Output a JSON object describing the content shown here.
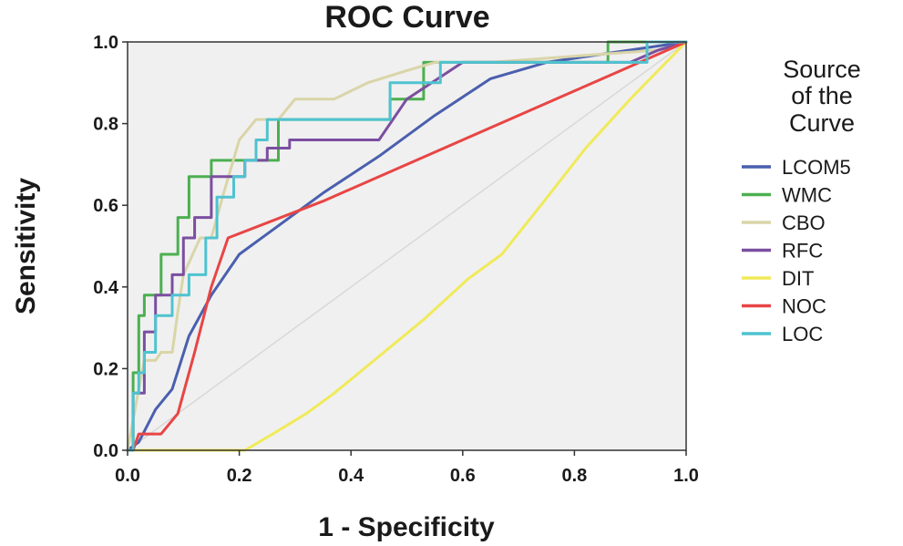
{
  "chart_data": {
    "type": "line",
    "title": "ROC Curve",
    "xlabel": "1 - Specificity",
    "ylabel": "Sensitivity",
    "xlim": [
      0,
      1
    ],
    "ylim": [
      0,
      1
    ],
    "xticks": [
      "0.0",
      "0.2",
      "0.4",
      "0.6",
      "0.8",
      "1.0"
    ],
    "yticks": [
      "0.0",
      "0.2",
      "0.4",
      "0.6",
      "0.8",
      "1.0"
    ],
    "plot_background": "#f0f0f0",
    "grid": false,
    "legend": {
      "title": [
        "Source",
        "of the",
        "Curve"
      ],
      "position": "right"
    },
    "reference_line": {
      "x": [
        0,
        1
      ],
      "y": [
        0,
        1
      ],
      "color": "#d8d8d8"
    },
    "series": [
      {
        "name": "LCOM5",
        "color": "#4a5fae",
        "x": [
          0,
          0.02,
          0.05,
          0.08,
          0.11,
          0.15,
          0.2,
          0.25,
          0.35,
          0.45,
          0.55,
          0.65,
          0.75,
          0.85,
          1.0
        ],
        "y": [
          0,
          0.02,
          0.1,
          0.15,
          0.28,
          0.38,
          0.48,
          0.53,
          0.63,
          0.72,
          0.82,
          0.91,
          0.95,
          0.97,
          1.0
        ]
      },
      {
        "name": "WMC",
        "color": "#4caf50",
        "x": [
          0,
          0.01,
          0.01,
          0.02,
          0.02,
          0.03,
          0.03,
          0.06,
          0.06,
          0.09,
          0.09,
          0.11,
          0.11,
          0.15,
          0.15,
          0.27,
          0.27,
          0.47,
          0.47,
          0.53,
          0.53,
          0.86,
          0.86,
          1.0
        ],
        "y": [
          0,
          0,
          0.19,
          0.19,
          0.33,
          0.33,
          0.38,
          0.38,
          0.48,
          0.48,
          0.57,
          0.57,
          0.67,
          0.67,
          0.71,
          0.71,
          0.81,
          0.81,
          0.86,
          0.86,
          0.95,
          0.95,
          1.0,
          1.0
        ]
      },
      {
        "name": "CBO",
        "color": "#d9d5a8",
        "x": [
          0,
          0.02,
          0.03,
          0.05,
          0.06,
          0.08,
          0.09,
          0.1,
          0.13,
          0.15,
          0.17,
          0.2,
          0.23,
          0.27,
          0.3,
          0.33,
          0.37,
          0.43,
          0.5,
          0.55,
          0.65,
          0.75,
          0.85,
          0.95,
          1.0
        ],
        "y": [
          0,
          0.15,
          0.22,
          0.22,
          0.24,
          0.24,
          0.34,
          0.43,
          0.52,
          0.52,
          0.62,
          0.76,
          0.81,
          0.81,
          0.86,
          0.86,
          0.86,
          0.9,
          0.93,
          0.95,
          0.95,
          0.96,
          0.97,
          0.98,
          1.0
        ]
      },
      {
        "name": "RFC",
        "color": "#7b4fa0",
        "x": [
          0,
          0.01,
          0.01,
          0.03,
          0.03,
          0.05,
          0.05,
          0.08,
          0.08,
          0.1,
          0.1,
          0.12,
          0.12,
          0.15,
          0.15,
          0.21,
          0.21,
          0.25,
          0.25,
          0.29,
          0.29,
          0.45,
          0.5,
          0.6,
          0.7,
          0.85,
          0.9,
          0.95,
          1.0
        ],
        "y": [
          0,
          0,
          0.14,
          0.14,
          0.29,
          0.29,
          0.38,
          0.38,
          0.43,
          0.43,
          0.52,
          0.52,
          0.57,
          0.57,
          0.67,
          0.67,
          0.71,
          0.71,
          0.74,
          0.74,
          0.76,
          0.76,
          0.86,
          0.95,
          0.95,
          0.95,
          0.95,
          0.98,
          1.0
        ]
      },
      {
        "name": "DIT",
        "color": "#f0ea5a",
        "x": [
          0,
          0.21,
          0.26,
          0.32,
          0.37,
          0.45,
          0.53,
          0.61,
          0.67,
          0.74,
          0.82,
          0.9,
          1.0
        ],
        "y": [
          0,
          0,
          0.04,
          0.09,
          0.14,
          0.23,
          0.32,
          0.42,
          0.48,
          0.6,
          0.74,
          0.86,
          1.0
        ]
      },
      {
        "name": "NOC",
        "color": "#e84545",
        "x": [
          0,
          0.01,
          0.02,
          0.06,
          0.09,
          0.12,
          0.15,
          0.18,
          0.35,
          0.6,
          0.8,
          1.0
        ],
        "y": [
          0,
          0,
          0.04,
          0.04,
          0.09,
          0.24,
          0.4,
          0.52,
          0.61,
          0.76,
          0.88,
          1.0
        ]
      },
      {
        "name": "LOC",
        "color": "#4fc3cf",
        "x": [
          0,
          0.01,
          0.01,
          0.02,
          0.02,
          0.03,
          0.03,
          0.05,
          0.05,
          0.08,
          0.08,
          0.11,
          0.11,
          0.14,
          0.14,
          0.16,
          0.16,
          0.19,
          0.19,
          0.21,
          0.21,
          0.23,
          0.23,
          0.25,
          0.25,
          0.27,
          0.27,
          0.47,
          0.47,
          0.5,
          0.5,
          0.56,
          0.56,
          0.86,
          0.86,
          0.93,
          0.93,
          1.0
        ],
        "y": [
          0,
          0,
          0.14,
          0.14,
          0.19,
          0.19,
          0.24,
          0.24,
          0.33,
          0.33,
          0.38,
          0.38,
          0.43,
          0.43,
          0.52,
          0.52,
          0.62,
          0.62,
          0.67,
          0.67,
          0.71,
          0.71,
          0.76,
          0.76,
          0.81,
          0.81,
          0.81,
          0.81,
          0.9,
          0.9,
          0.9,
          0.9,
          0.95,
          0.95,
          0.95,
          0.95,
          1.0,
          1.0
        ]
      }
    ]
  }
}
